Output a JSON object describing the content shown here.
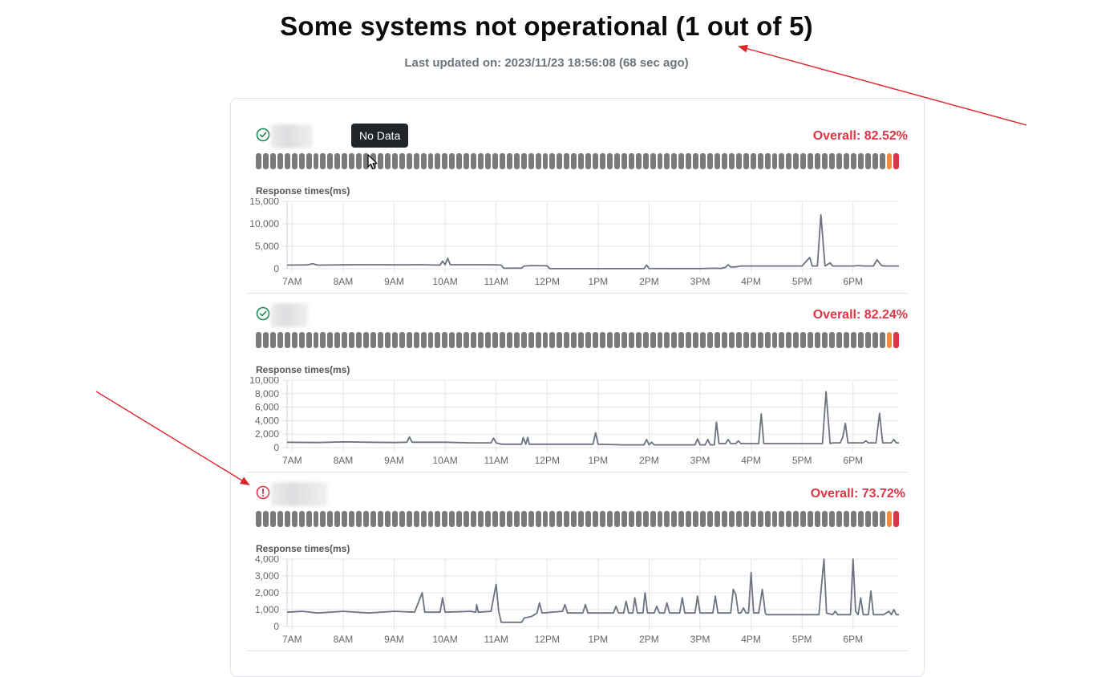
{
  "header": {
    "title": "Some systems not operational (1 out of 5)",
    "last_updated": "Last updated on: 2023/11/23 18:56:08 (68 sec ago)"
  },
  "tooltip": {
    "text": "No Data"
  },
  "colors": {
    "bar_no_data": "#7a7a7a",
    "bar_orange": "#f28c38",
    "bar_red": "#dc3545",
    "status_ok": "#198754",
    "status_error": "#dc3545",
    "line": "#6b7280",
    "annotation_arrow": "#e0242a"
  },
  "services": [
    {
      "status": "ok",
      "status_icon": "check-circle-icon",
      "overall": "Overall: 82.52%",
      "chart_title": "Response times(ms)",
      "chart_data": {
        "type": "line",
        "ylabel": "Response times(ms)",
        "ylim": [
          0,
          15000
        ],
        "yticks": [
          "0",
          "5,000",
          "10,000",
          "15,000"
        ],
        "x_ticks": [
          "7AM",
          "8AM",
          "9AM",
          "10AM",
          "11AM",
          "12PM",
          "1PM",
          "2PM",
          "3PM",
          "4PM",
          "5PM",
          "6PM"
        ],
        "x_range": [
          6.9,
          18.9
        ],
        "points": [
          [
            6.9,
            800
          ],
          [
            7.3,
            850
          ],
          [
            7.4,
            1100
          ],
          [
            7.5,
            800
          ],
          [
            8.0,
            850
          ],
          [
            8.5,
            900
          ],
          [
            9.0,
            850
          ],
          [
            9.5,
            900
          ],
          [
            9.9,
            800
          ],
          [
            9.95,
            1700
          ],
          [
            10.0,
            900
          ],
          [
            10.05,
            2300
          ],
          [
            10.1,
            900
          ],
          [
            10.5,
            900
          ],
          [
            11.0,
            850
          ],
          [
            11.1,
            800
          ],
          [
            11.15,
            100
          ],
          [
            11.5,
            150
          ],
          [
            11.55,
            600
          ],
          [
            11.7,
            700
          ],
          [
            12.0,
            650
          ],
          [
            12.05,
            20
          ],
          [
            12.5,
            20
          ],
          [
            13.0,
            20
          ],
          [
            13.5,
            20
          ],
          [
            13.9,
            30
          ],
          [
            13.95,
            800
          ],
          [
            14.0,
            50
          ],
          [
            14.5,
            30
          ],
          [
            15.0,
            30
          ],
          [
            15.3,
            100
          ],
          [
            15.4,
            50
          ],
          [
            15.5,
            300
          ],
          [
            15.55,
            900
          ],
          [
            15.6,
            400
          ],
          [
            15.7,
            400
          ],
          [
            15.8,
            600
          ],
          [
            16.0,
            600
          ],
          [
            16.5,
            600
          ],
          [
            17.0,
            600
          ],
          [
            17.15,
            2500
          ],
          [
            17.2,
            600
          ],
          [
            17.3,
            600
          ],
          [
            17.37,
            12000
          ],
          [
            17.45,
            600
          ],
          [
            17.55,
            1300
          ],
          [
            17.6,
            600
          ],
          [
            18.0,
            600
          ],
          [
            18.1,
            700
          ],
          [
            18.2,
            600
          ],
          [
            18.4,
            600
          ],
          [
            18.47,
            2000
          ],
          [
            18.55,
            800
          ],
          [
            18.6,
            600
          ],
          [
            18.9,
            600
          ]
        ]
      }
    },
    {
      "status": "ok",
      "status_icon": "check-circle-icon",
      "overall": "Overall: 82.24%",
      "chart_title": "Response times(ms)",
      "chart_data": {
        "type": "line",
        "ylabel": "Response times(ms)",
        "ylim": [
          0,
          10000
        ],
        "yticks": [
          "0",
          "2,000",
          "4,000",
          "6,000",
          "8,000",
          "10,000"
        ],
        "x_ticks": [
          "7AM",
          "8AM",
          "9AM",
          "10AM",
          "11AM",
          "12PM",
          "1PM",
          "2PM",
          "3PM",
          "4PM",
          "5PM",
          "6PM"
        ],
        "x_range": [
          6.9,
          18.9
        ],
        "points": [
          [
            6.9,
            800
          ],
          [
            7.5,
            750
          ],
          [
            8.0,
            850
          ],
          [
            8.5,
            800
          ],
          [
            9.0,
            750
          ],
          [
            9.25,
            800
          ],
          [
            9.3,
            1600
          ],
          [
            9.35,
            800
          ],
          [
            10.0,
            800
          ],
          [
            10.5,
            700
          ],
          [
            10.9,
            700
          ],
          [
            10.95,
            1400
          ],
          [
            11.0,
            700
          ],
          [
            11.1,
            500
          ],
          [
            11.5,
            500
          ],
          [
            11.53,
            1500
          ],
          [
            11.58,
            500
          ],
          [
            11.62,
            1500
          ],
          [
            11.65,
            500
          ],
          [
            12.0,
            500
          ],
          [
            12.5,
            500
          ],
          [
            12.9,
            500
          ],
          [
            12.95,
            2200
          ],
          [
            13.0,
            500
          ],
          [
            13.5,
            400
          ],
          [
            13.9,
            400
          ],
          [
            13.95,
            1200
          ],
          [
            14.0,
            400
          ],
          [
            14.05,
            800
          ],
          [
            14.1,
            400
          ],
          [
            14.5,
            400
          ],
          [
            14.9,
            400
          ],
          [
            14.95,
            1300
          ],
          [
            15.0,
            400
          ],
          [
            15.1,
            400
          ],
          [
            15.15,
            1200
          ],
          [
            15.2,
            400
          ],
          [
            15.28,
            400
          ],
          [
            15.32,
            3800
          ],
          [
            15.37,
            600
          ],
          [
            15.5,
            600
          ],
          [
            15.55,
            1200
          ],
          [
            15.6,
            600
          ],
          [
            15.7,
            600
          ],
          [
            15.75,
            1000
          ],
          [
            15.8,
            600
          ],
          [
            16.15,
            600
          ],
          [
            16.2,
            5000
          ],
          [
            16.25,
            600
          ],
          [
            16.5,
            600
          ],
          [
            17.0,
            600
          ],
          [
            17.4,
            600
          ],
          [
            17.47,
            8300
          ],
          [
            17.52,
            3400
          ],
          [
            17.55,
            600
          ],
          [
            17.6,
            700
          ],
          [
            17.75,
            700
          ],
          [
            17.8,
            1600
          ],
          [
            17.85,
            3600
          ],
          [
            17.9,
            700
          ],
          [
            18.2,
            700
          ],
          [
            18.25,
            1000
          ],
          [
            18.3,
            700
          ],
          [
            18.45,
            700
          ],
          [
            18.52,
            5100
          ],
          [
            18.58,
            700
          ],
          [
            18.75,
            700
          ],
          [
            18.8,
            1200
          ],
          [
            18.85,
            700
          ],
          [
            18.9,
            700
          ]
        ]
      }
    },
    {
      "status": "error",
      "status_icon": "exclamation-circle-icon",
      "overall": "Overall: 73.72%",
      "chart_title": "Response times(ms)",
      "chart_data": {
        "type": "line",
        "ylabel": "Response times(ms)",
        "ylim": [
          0,
          4000
        ],
        "yticks": [
          "0",
          "1,000",
          "2,000",
          "3,000",
          "4,000"
        ],
        "x_ticks": [
          "7AM",
          "8AM",
          "9AM",
          "10AM",
          "11AM",
          "12PM",
          "1PM",
          "2PM",
          "3PM",
          "4PM",
          "5PM",
          "6PM"
        ],
        "x_range": [
          6.9,
          18.9
        ],
        "points": [
          [
            6.9,
            850
          ],
          [
            7.2,
            900
          ],
          [
            7.5,
            800
          ],
          [
            8.0,
            900
          ],
          [
            8.5,
            800
          ],
          [
            9.0,
            900
          ],
          [
            9.4,
            850
          ],
          [
            9.55,
            2000
          ],
          [
            9.6,
            850
          ],
          [
            9.9,
            850
          ],
          [
            9.95,
            1700
          ],
          [
            10.0,
            850
          ],
          [
            10.5,
            900
          ],
          [
            10.6,
            850
          ],
          [
            10.62,
            1300
          ],
          [
            10.65,
            850
          ],
          [
            10.9,
            900
          ],
          [
            11.0,
            2500
          ],
          [
            11.05,
            900
          ],
          [
            11.1,
            250
          ],
          [
            11.5,
            250
          ],
          [
            11.55,
            500
          ],
          [
            11.7,
            600
          ],
          [
            11.8,
            800
          ],
          [
            11.85,
            1400
          ],
          [
            11.9,
            800
          ],
          [
            12.3,
            900
          ],
          [
            12.35,
            1300
          ],
          [
            12.4,
            800
          ],
          [
            12.7,
            800
          ],
          [
            12.75,
            1300
          ],
          [
            12.8,
            800
          ],
          [
            13.3,
            800
          ],
          [
            13.35,
            1200
          ],
          [
            13.4,
            800
          ],
          [
            13.5,
            800
          ],
          [
            13.55,
            1500
          ],
          [
            13.6,
            800
          ],
          [
            13.68,
            800
          ],
          [
            13.72,
            1700
          ],
          [
            13.77,
            800
          ],
          [
            13.88,
            800
          ],
          [
            13.92,
            2000
          ],
          [
            13.97,
            800
          ],
          [
            14.1,
            800
          ],
          [
            14.15,
            1200
          ],
          [
            14.2,
            800
          ],
          [
            14.3,
            800
          ],
          [
            14.35,
            1400
          ],
          [
            14.4,
            800
          ],
          [
            14.6,
            800
          ],
          [
            14.65,
            1700
          ],
          [
            14.7,
            800
          ],
          [
            14.9,
            800
          ],
          [
            14.95,
            1800
          ],
          [
            15.0,
            800
          ],
          [
            15.25,
            800
          ],
          [
            15.3,
            1800
          ],
          [
            15.35,
            800
          ],
          [
            15.6,
            800
          ],
          [
            15.65,
            2200
          ],
          [
            15.7,
            1900
          ],
          [
            15.75,
            800
          ],
          [
            15.8,
            800
          ],
          [
            15.85,
            1100
          ],
          [
            15.9,
            800
          ],
          [
            15.95,
            800
          ],
          [
            16.0,
            3200
          ],
          [
            16.05,
            800
          ],
          [
            16.15,
            800
          ],
          [
            16.22,
            2200
          ],
          [
            16.28,
            800
          ],
          [
            16.3,
            700
          ],
          [
            16.8,
            700
          ],
          [
            17.2,
            700
          ],
          [
            17.33,
            700
          ],
          [
            17.38,
            2400
          ],
          [
            17.43,
            4000
          ],
          [
            17.48,
            800
          ],
          [
            17.6,
            700
          ],
          [
            17.65,
            900
          ],
          [
            17.7,
            700
          ],
          [
            17.95,
            700
          ],
          [
            18.0,
            4000
          ],
          [
            18.05,
            900
          ],
          [
            18.1,
            700
          ],
          [
            18.15,
            1700
          ],
          [
            18.2,
            700
          ],
          [
            18.3,
            700
          ],
          [
            18.35,
            2100
          ],
          [
            18.4,
            700
          ],
          [
            18.6,
            700
          ],
          [
            18.7,
            900
          ],
          [
            18.75,
            700
          ],
          [
            18.8,
            1000
          ],
          [
            18.85,
            700
          ],
          [
            18.9,
            700
          ]
        ]
      }
    }
  ]
}
